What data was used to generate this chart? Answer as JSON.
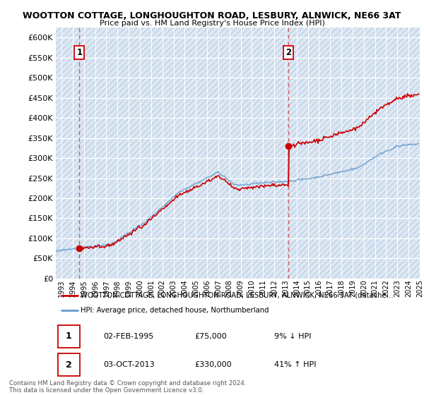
{
  "title_line1": "WOOTTON COTTAGE, LONGHOUGHTON ROAD, LESBURY, ALNWICK, NE66 3AT",
  "title_line2": "Price paid vs. HM Land Registry's House Price Index (HPI)",
  "ylabel_ticks": [
    "£0",
    "£50K",
    "£100K",
    "£150K",
    "£200K",
    "£250K",
    "£300K",
    "£350K",
    "£400K",
    "£450K",
    "£500K",
    "£550K",
    "£600K"
  ],
  "ytick_vals": [
    0,
    50000,
    100000,
    150000,
    200000,
    250000,
    300000,
    350000,
    400000,
    450000,
    500000,
    550000,
    600000
  ],
  "ylim": [
    0,
    625000
  ],
  "xlim_start": 1993.0,
  "xlim_end": 2025.5,
  "purchase1_year": 1995.09,
  "purchase1_price": 75000,
  "purchase2_year": 2013.75,
  "purchase2_price": 330000,
  "legend_line1": "WOOTTON COTTAGE, LONGHOUGHTON ROAD, LESBURY, ALNWICK, NE66 3AT (detache…",
  "legend_line2": "HPI: Average price, detached house, Northumberland",
  "table_row1": [
    "1",
    "02-FEB-1995",
    "£75,000",
    "9% ↓ HPI"
  ],
  "table_row2": [
    "2",
    "03-OCT-2013",
    "£330,000",
    "41% ↑ HPI"
  ],
  "footer": "Contains HM Land Registry data © Crown copyright and database right 2024.\nThis data is licensed under the Open Government Licence v3.0.",
  "price_line_color": "#cc0000",
  "hpi_line_color": "#6699cc",
  "hatch_facecolor": "#dde8f5",
  "hatch_edgecolor": "#c0cfdf",
  "grid_color": "#ffffff",
  "dashed_line_color": "#cc4444",
  "plot_bg": "#e8eef8"
}
